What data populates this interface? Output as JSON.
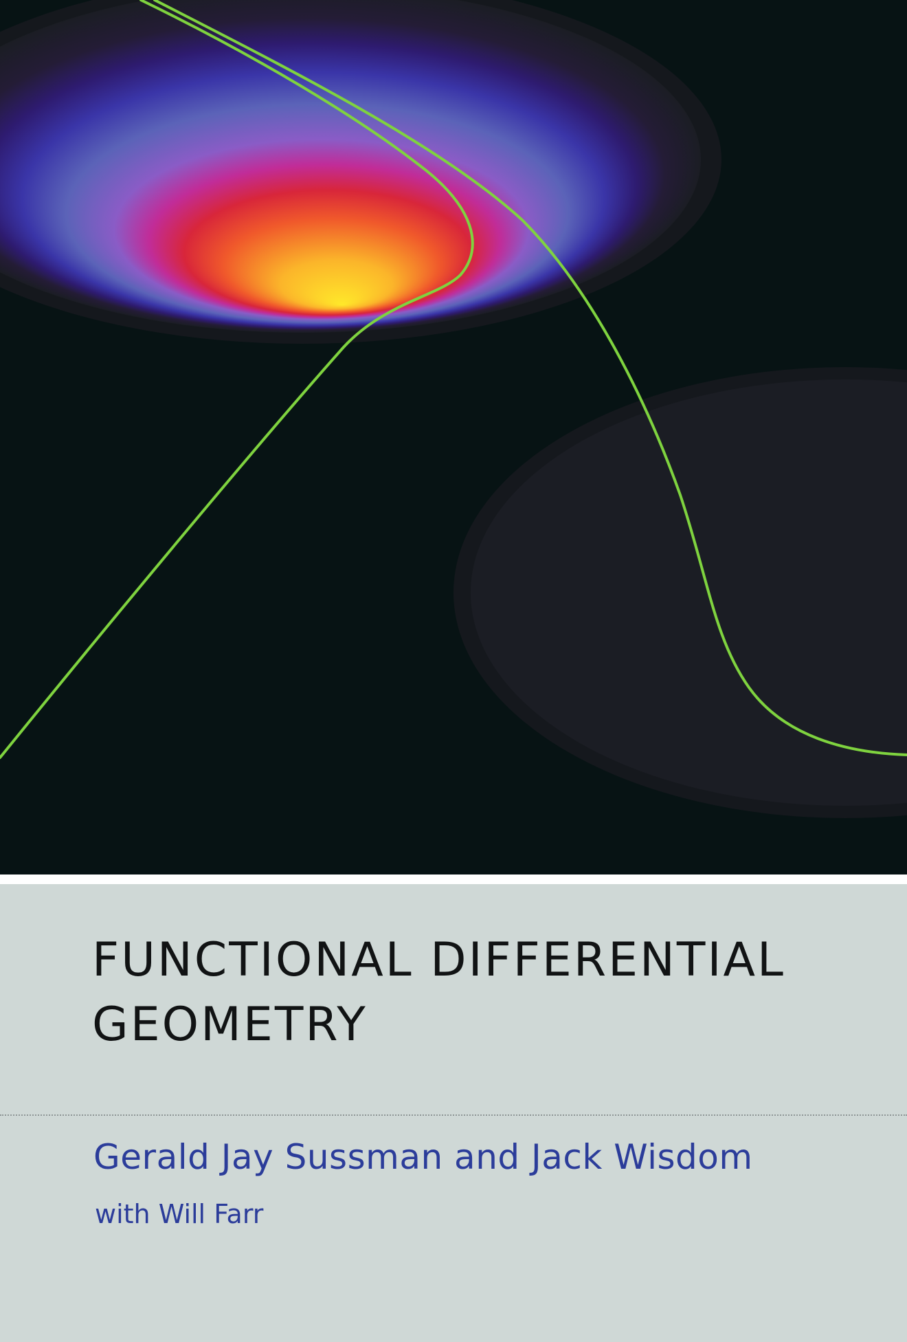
{
  "title_lines": {
    "line1": "FUNCTIONAL DIFFERENTIAL",
    "line2": "GEOMETRY"
  },
  "authors": "Gerald Jay Sussman and Jack Wisdom",
  "contributor": "with Will Farr",
  "colors": {
    "background_top": "#071314",
    "panel": "#cfd8d6",
    "title_text": "#111314",
    "author_text": "#2b3c9a",
    "trajectory": "#7fd33f"
  }
}
